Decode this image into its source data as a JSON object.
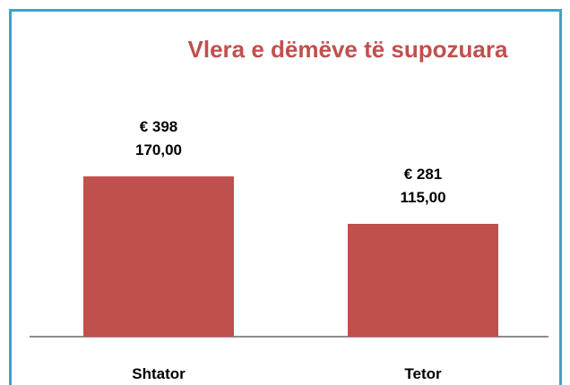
{
  "chart_data": {
    "type": "bar",
    "title": "Vlera e dëmëve të supozuara",
    "categories": [
      "Shtator",
      "Tetor"
    ],
    "values": [
      398170.0,
      281115.0
    ],
    "value_labels": [
      "€ 398 170,00",
      "€ 281 115,00"
    ],
    "color": "#c0504d"
  }
}
